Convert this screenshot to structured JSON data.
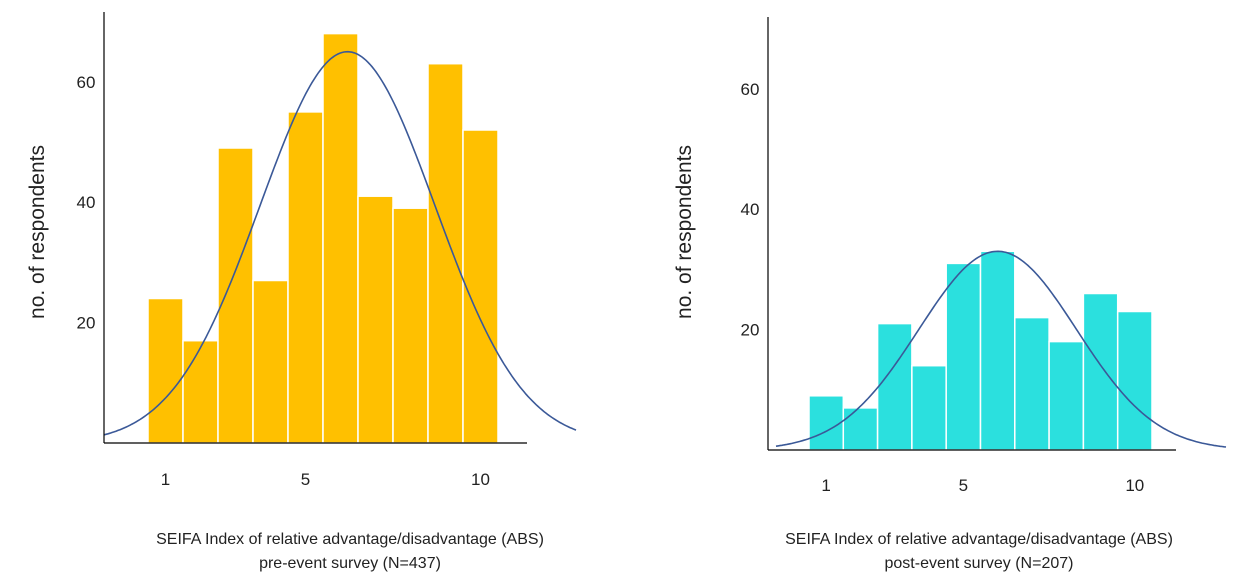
{
  "chart_data": [
    {
      "type": "bar",
      "variant": "histogram-with-normal-curve",
      "color": "#FFC000",
      "curve_color": "#3B5998",
      "ylabel": "no. of respondents",
      "xlabel": "SEIFA Index of relative advantage/disadvantage (ABS)",
      "subtitle": "pre-event survey (N=437)",
      "categories": [
        "1",
        "2",
        "3",
        "4",
        "5",
        "6",
        "7",
        "8",
        "9",
        "10"
      ],
      "x_ticks": [
        "1",
        "5",
        "10"
      ],
      "y_ticks": [
        "20",
        "40",
        "60"
      ],
      "values": [
        24,
        17,
        49,
        27,
        55,
        68,
        41,
        39,
        63,
        52
      ],
      "ylim": [
        0,
        72
      ],
      "grid": false,
      "curve": {
        "mean": 6.2,
        "sd": 2.5,
        "peak": 65
      }
    },
    {
      "type": "bar",
      "variant": "histogram-with-normal-curve",
      "color": "#2BE0DE",
      "curve_color": "#3B5998",
      "ylabel": "no. of respondents",
      "xlabel": "SEIFA Index of relative advantage/disadvantage (ABS)",
      "subtitle": "post-event survey (N=207)",
      "categories": [
        "1",
        "2",
        "3",
        "4",
        "5",
        "6",
        "7",
        "8",
        "9",
        "10"
      ],
      "x_ticks": [
        "1",
        "5",
        "10"
      ],
      "y_ticks": [
        "20",
        "40",
        "60"
      ],
      "values": [
        9,
        7,
        21,
        14,
        31,
        33,
        22,
        18,
        26,
        23
      ],
      "ylim": [
        0,
        72
      ],
      "grid": false,
      "curve": {
        "mean": 6.0,
        "sd": 2.3,
        "peak": 33
      }
    }
  ]
}
